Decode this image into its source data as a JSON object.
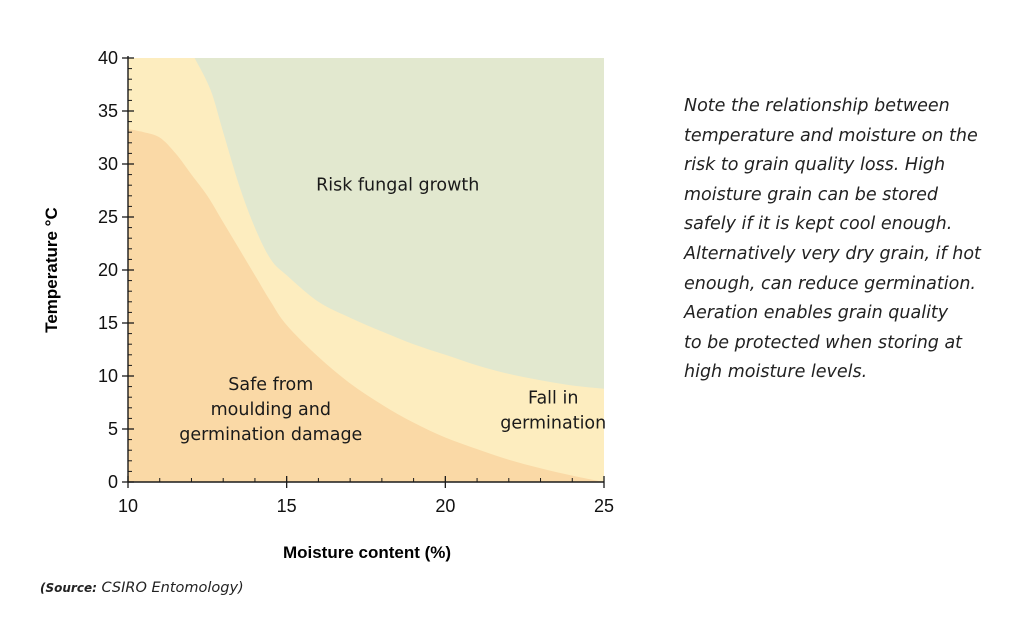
{
  "chart_data": {
    "type": "area",
    "xlabel": "Moisture content (%)",
    "ylabel": "Temperature °C",
    "xlim": [
      10,
      25
    ],
    "ylim": [
      0,
      40
    ],
    "x_ticks": [
      "10",
      "15",
      "20",
      "25"
    ],
    "y_ticks": [
      "0",
      "5",
      "10",
      "15",
      "20",
      "25",
      "30",
      "35",
      "40"
    ],
    "regions": [
      {
        "name": "Risk fungal growth",
        "label_lines": [
          "Risk fungal growth"
        ],
        "color": "#e2e8cf",
        "boundary": [
          [
            12.1,
            40
          ],
          [
            12.6,
            37
          ],
          [
            13.0,
            33
          ],
          [
            13.5,
            28
          ],
          [
            14.0,
            24
          ],
          [
            14.5,
            21
          ],
          [
            15.0,
            19.5
          ],
          [
            16.0,
            17
          ],
          [
            17.0,
            15.5
          ],
          [
            18.0,
            14.2
          ],
          [
            19.0,
            13
          ],
          [
            20.0,
            12
          ],
          [
            21.0,
            11
          ],
          [
            22.0,
            10.2
          ],
          [
            23.0,
            9.6
          ],
          [
            24.0,
            9.1
          ],
          [
            25.0,
            8.8
          ]
        ]
      },
      {
        "name": "Fall in germination",
        "label_lines": [
          "Fall in",
          "germination"
        ],
        "color": "#fdedbf"
      },
      {
        "name": "Safe from moulding and germination damage",
        "label_lines": [
          "Safe from",
          "moulding and",
          "germination damage"
        ],
        "color": "#fad9a6",
        "boundary": [
          [
            10.0,
            33.3
          ],
          [
            10.5,
            33
          ],
          [
            11.0,
            32.5
          ],
          [
            11.5,
            31
          ],
          [
            12.0,
            29
          ],
          [
            12.5,
            27
          ],
          [
            13.0,
            24.5
          ],
          [
            13.5,
            22
          ],
          [
            14.0,
            19.5
          ],
          [
            14.5,
            17
          ],
          [
            15.0,
            14.8
          ],
          [
            16.0,
            11.8
          ],
          [
            17.0,
            9.3
          ],
          [
            18.0,
            7.3
          ],
          [
            19.0,
            5.6
          ],
          [
            20.0,
            4.2
          ],
          [
            21.0,
            3.1
          ],
          [
            22.0,
            2.1
          ],
          [
            23.0,
            1.3
          ],
          [
            24.0,
            0.6
          ],
          [
            25.0,
            0
          ]
        ]
      }
    ]
  },
  "note": {
    "lines": [
      "Note the relationship between",
      "temperature and moisture on the",
      "risk to grain quality loss. High",
      "moisture grain can be stored",
      "safely if it is kept cool enough.",
      "Alternatively very dry grain, if hot",
      "enough, can reduce germination.",
      "Aeration enables grain quality",
      "to be protected when storing at",
      "high moisture levels."
    ]
  },
  "source": {
    "label": "(Source:",
    "text": "CSIRO Entomology)"
  }
}
